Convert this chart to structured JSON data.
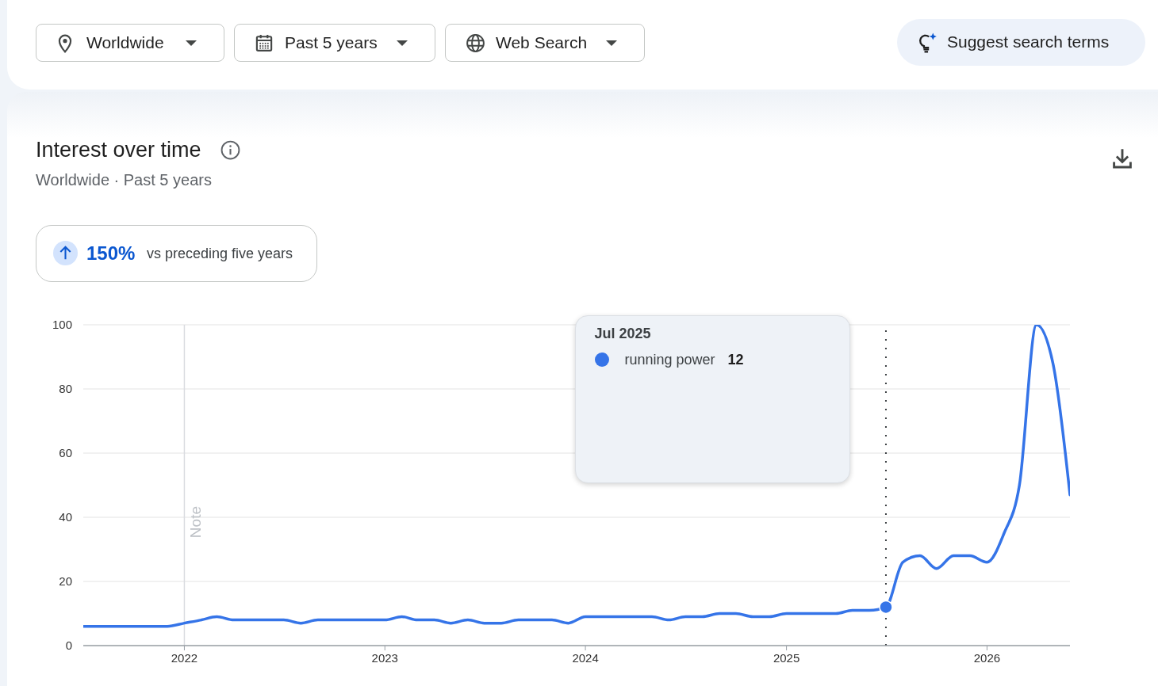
{
  "chart_data": {
    "type": "line",
    "title": "Interest over time",
    "subtitle": "Worldwide · Past 5 years",
    "annotations": [
      "Worldwide",
      "Past 5 years",
      "Web Search",
      "Suggest search terms",
      "150%",
      "vs preceding five years",
      "Jul 2025",
      "12"
    ],
    "x": [
      "2021-07",
      "2021-08",
      "2021-09",
      "2021-10",
      "2021-11",
      "2021-12",
      "2022-01",
      "2022-02",
      "2022-03",
      "2022-04",
      "2022-05",
      "2022-06",
      "2022-07",
      "2022-08",
      "2022-09",
      "2022-10",
      "2022-11",
      "2022-12",
      "2023-01",
      "2023-02",
      "2023-03",
      "2023-04",
      "2023-05",
      "2023-06",
      "2023-07",
      "2023-08",
      "2023-09",
      "2023-10",
      "2023-11",
      "2023-12",
      "2024-01",
      "2024-02",
      "2024-03",
      "2024-04",
      "2024-05",
      "2024-06",
      "2024-07",
      "2024-08",
      "2024-09",
      "2024-10",
      "2024-11",
      "2024-12",
      "2025-01",
      "2025-02",
      "2025-03",
      "2025-04",
      "2025-05",
      "2025-06",
      "2025-07",
      "2025-08",
      "2025-09",
      "2025-10",
      "2025-11",
      "2025-12",
      "2026-01",
      "2026-02",
      "2026-03",
      "2026-04",
      "2026-05",
      "2026-06"
    ],
    "series": [
      {
        "name": "running power",
        "color": "#3574e8",
        "values": [
          6,
          6,
          6,
          6,
          6,
          6,
          7,
          8,
          9,
          8,
          8,
          8,
          8,
          7,
          8,
          8,
          8,
          8,
          8,
          9,
          8,
          8,
          7,
          8,
          7,
          7,
          8,
          8,
          8,
          7,
          9,
          9,
          9,
          9,
          9,
          8,
          9,
          9,
          10,
          10,
          9,
          9,
          10,
          10,
          10,
          10,
          11,
          11,
          12,
          26,
          28,
          24,
          28,
          28,
          26,
          35,
          50,
          100,
          88,
          47
        ]
      },
      {
        "type": "scatter",
        "x": [
          "2025-07"
        ],
        "values": [
          12
        ],
        "color": "#3574e8",
        "marker": "circle"
      }
    ],
    "xlim": [
      "2021-07",
      "2026-06"
    ],
    "xticks": [
      "2022",
      "2023",
      "2024",
      "2025",
      "2026"
    ],
    "ylim": [
      0,
      100
    ],
    "yticks": [
      0,
      20,
      40,
      60,
      80,
      100
    ],
    "grid": "y",
    "legend": "top",
    "ref_lines": [
      {
        "axis": "x",
        "value": "2022-01",
        "label": "Note",
        "color": "#dadce0",
        "line_style": "solid"
      },
      {
        "axis": "x",
        "value": "2025-07",
        "color": "#3c4043",
        "line_style": "dotted"
      }
    ]
  }
}
